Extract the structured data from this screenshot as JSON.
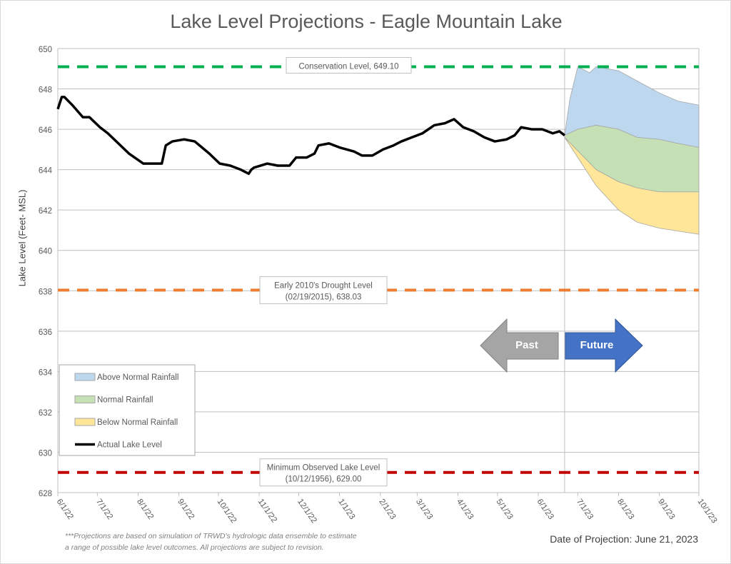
{
  "chart_data": {
    "type": "area",
    "title": "Lake Level Projections - Eagle Mountain Lake",
    "ylabel": "Lake Level (Feet- MSL)",
    "xlabel": "",
    "ylim": [
      628,
      650
    ],
    "yticks": [
      628,
      630,
      632,
      634,
      636,
      638,
      640,
      642,
      644,
      646,
      648,
      650
    ],
    "xlim": [
      "2022-06-01",
      "2023-10-01"
    ],
    "xtick_labels": [
      "6/1/22",
      "7/1/22",
      "8/1/22",
      "9/1/22",
      "10/1/22",
      "11/1/22",
      "12/1/22",
      "1/1/23",
      "2/1/23",
      "3/1/23",
      "4/1/23",
      "5/1/23",
      "6/1/23",
      "7/1/23",
      "8/1/23",
      "9/1/23",
      "10/1/23"
    ],
    "xtick_dates": [
      "2022-06-01",
      "2022-07-01",
      "2022-08-01",
      "2022-09-01",
      "2022-10-01",
      "2022-11-01",
      "2022-12-01",
      "2023-01-01",
      "2023-02-01",
      "2023-03-01",
      "2023-04-01",
      "2023-05-01",
      "2023-06-01",
      "2023-07-01",
      "2023-08-01",
      "2023-09-01",
      "2023-10-01"
    ],
    "grid": "horizontal",
    "legend_placement": "bottom-left",
    "legend": [
      {
        "name": "Above Normal Rainfall",
        "color": "#bdd7ee"
      },
      {
        "name": "Normal Rainfall",
        "color": "#c5e0b4"
      },
      {
        "name": "Below Normal Rainfall",
        "color": "#ffe699"
      },
      {
        "name": "Actual Lake Level",
        "color": "#000000"
      }
    ],
    "actual_lake_level": [
      [
        "2022-06-01",
        647.0
      ],
      [
        "2022-06-04",
        647.6
      ],
      [
        "2022-06-06",
        647.6
      ],
      [
        "2022-06-12",
        647.2
      ],
      [
        "2022-06-20",
        646.6
      ],
      [
        "2022-06-25",
        646.6
      ],
      [
        "2022-07-03",
        646.1
      ],
      [
        "2022-07-09",
        645.8
      ],
      [
        "2022-07-17",
        645.3
      ],
      [
        "2022-07-25",
        644.8
      ],
      [
        "2022-08-05",
        644.3
      ],
      [
        "2022-08-13",
        644.3
      ],
      [
        "2022-08-19",
        644.3
      ],
      [
        "2022-08-22",
        645.2
      ],
      [
        "2022-08-27",
        645.4
      ],
      [
        "2022-09-05",
        645.5
      ],
      [
        "2022-09-13",
        645.4
      ],
      [
        "2022-09-24",
        644.8
      ],
      [
        "2022-10-02",
        644.3
      ],
      [
        "2022-10-10",
        644.2
      ],
      [
        "2022-10-18",
        644.0
      ],
      [
        "2022-10-24",
        643.8
      ],
      [
        "2022-10-26",
        644.0
      ],
      [
        "2022-10-28",
        644.1
      ],
      [
        "2022-11-07",
        644.3
      ],
      [
        "2022-11-15",
        644.2
      ],
      [
        "2022-11-24",
        644.2
      ],
      [
        "2022-11-29",
        644.6
      ],
      [
        "2022-12-07",
        644.6
      ],
      [
        "2022-12-13",
        644.8
      ],
      [
        "2022-12-16",
        645.2
      ],
      [
        "2022-12-24",
        645.3
      ],
      [
        "2023-01-01",
        645.1
      ],
      [
        "2023-01-12",
        644.9
      ],
      [
        "2023-01-18",
        644.7
      ],
      [
        "2023-01-26",
        644.7
      ],
      [
        "2023-02-03",
        645.0
      ],
      [
        "2023-02-11",
        645.2
      ],
      [
        "2023-02-17",
        645.4
      ],
      [
        "2023-02-25",
        645.6
      ],
      [
        "2023-03-05",
        645.8
      ],
      [
        "2023-03-14",
        646.2
      ],
      [
        "2023-03-22",
        646.3
      ],
      [
        "2023-03-29",
        646.5
      ],
      [
        "2023-04-05",
        646.1
      ],
      [
        "2023-04-13",
        645.9
      ],
      [
        "2023-04-21",
        645.6
      ],
      [
        "2023-04-29",
        645.4
      ],
      [
        "2023-05-08",
        645.5
      ],
      [
        "2023-05-14",
        645.7
      ],
      [
        "2023-05-19",
        646.1
      ],
      [
        "2023-05-27",
        646.0
      ],
      [
        "2023-06-04",
        646.0
      ],
      [
        "2023-06-12",
        645.8
      ],
      [
        "2023-06-17",
        645.9
      ],
      [
        "2023-06-21",
        645.7
      ]
    ],
    "projections": {
      "above_normal_upper": [
        [
          "2023-06-21",
          645.7
        ],
        [
          "2023-06-25",
          647.5
        ],
        [
          "2023-07-01",
          649.1
        ],
        [
          "2023-07-10",
          648.8
        ],
        [
          "2023-07-15",
          649.1
        ],
        [
          "2023-08-01",
          648.9
        ],
        [
          "2023-08-15",
          648.4
        ],
        [
          "2023-09-01",
          647.8
        ],
        [
          "2023-09-15",
          647.4
        ],
        [
          "2023-10-01",
          647.2
        ]
      ],
      "normal_upper": [
        [
          "2023-06-21",
          645.7
        ],
        [
          "2023-07-01",
          646.0
        ],
        [
          "2023-07-15",
          646.2
        ],
        [
          "2023-08-01",
          646.0
        ],
        [
          "2023-08-15",
          645.6
        ],
        [
          "2023-09-01",
          645.5
        ],
        [
          "2023-09-15",
          645.3
        ],
        [
          "2023-10-01",
          645.1
        ]
      ],
      "below_normal_upper": [
        [
          "2023-06-21",
          645.6
        ],
        [
          "2023-07-15",
          644.0
        ],
        [
          "2023-08-01",
          643.4
        ],
        [
          "2023-08-15",
          643.1
        ],
        [
          "2023-09-01",
          642.9
        ],
        [
          "2023-10-01",
          642.9
        ]
      ],
      "below_normal_lower": [
        [
          "2023-06-21",
          645.6
        ],
        [
          "2023-07-15",
          643.2
        ],
        [
          "2023-08-01",
          642.0
        ],
        [
          "2023-08-15",
          641.4
        ],
        [
          "2023-09-01",
          641.1
        ],
        [
          "2023-10-01",
          640.8
        ]
      ]
    },
    "reference_lines": [
      {
        "label": "Conservation Level, 649.10",
        "lines": [
          "Conservation Level, 649.10"
        ],
        "value": 649.1,
        "color": "#00b050"
      },
      {
        "label": "Early 2010's Drought Level (02/19/2015), 638.03",
        "lines": [
          "Early 2010's Drought Level",
          "(02/19/2015), 638.03"
        ],
        "value": 638.03,
        "color": "#ed7d31"
      },
      {
        "label": "Minimum Observed Lake Level (10/12/1956), 629.00",
        "lines": [
          "Minimum Observed Lake Level",
          "(10/12/1956), 629.00"
        ],
        "value": 629.0,
        "color": "#c00000"
      }
    ],
    "projection_date": "2023-06-21",
    "arrows": {
      "past": "Past",
      "future": "Future",
      "past_color": "#a5a5a5",
      "future_color": "#4472c4"
    }
  },
  "footnote": [
    "***Projections are based on simulation of TRWD's hydrologic data ensemble to estimate",
    "a range of possible lake level outcomes.  All projections are subject to revision."
  ],
  "projection_label": "Date of Projection: June 21, 2023"
}
